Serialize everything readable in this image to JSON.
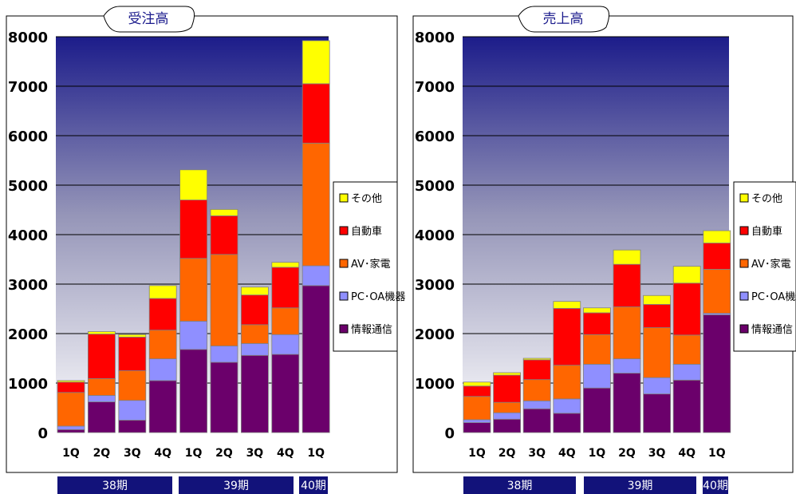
{
  "chart_data": [
    {
      "type": "bar",
      "stacked": true,
      "title": "受注高",
      "categories": [
        "1Q",
        "2Q",
        "3Q",
        "4Q",
        "1Q",
        "2Q",
        "3Q",
        "4Q",
        "1Q"
      ],
      "period_groups": [
        {
          "label": "38期",
          "span": 4
        },
        {
          "label": "39期",
          "span": 4
        },
        {
          "label": "40期",
          "span": 1
        }
      ],
      "ylim": [
        0,
        8000
      ],
      "yticks": [
        "0",
        "1000",
        "2000",
        "3000",
        "4000",
        "5000",
        "6000",
        "7000",
        "8000"
      ],
      "grid": true,
      "legend_position": "right",
      "series": [
        {
          "name": "情報通信",
          "color": "#6b006b",
          "values": [
            60,
            620,
            250,
            1050,
            1680,
            1420,
            1560,
            1580,
            2970
          ]
        },
        {
          "name": "PC･OA機器",
          "color": "#8f8fff",
          "values": [
            70,
            130,
            400,
            440,
            570,
            330,
            240,
            400,
            400
          ]
        },
        {
          "name": "AV･家電",
          "color": "#ff6600",
          "values": [
            680,
            340,
            600,
            580,
            1270,
            1850,
            380,
            540,
            2480
          ]
        },
        {
          "name": "自動車",
          "color": "#ff0000",
          "values": [
            210,
            900,
            680,
            640,
            1180,
            780,
            600,
            820,
            1200
          ]
        },
        {
          "name": "その他",
          "color": "#ffff00",
          "values": [
            30,
            50,
            50,
            260,
            610,
            130,
            160,
            100,
            870
          ]
        }
      ]
    },
    {
      "type": "bar",
      "stacked": true,
      "title": "売上高",
      "categories": [
        "1Q",
        "2Q",
        "3Q",
        "4Q",
        "1Q",
        "2Q",
        "3Q",
        "4Q",
        "1Q"
      ],
      "period_groups": [
        {
          "label": "38期",
          "span": 4
        },
        {
          "label": "39期",
          "span": 4
        },
        {
          "label": "40期",
          "span": 1
        }
      ],
      "ylim": [
        0,
        8000
      ],
      "yticks": [
        "0",
        "1000",
        "2000",
        "3000",
        "4000",
        "5000",
        "6000",
        "7000",
        "8000"
      ],
      "grid": true,
      "legend_position": "right",
      "series": [
        {
          "name": "情報通信",
          "color": "#6b006b",
          "values": [
            200,
            270,
            480,
            390,
            900,
            1200,
            780,
            1060,
            2380
          ]
        },
        {
          "name": "PC･OA機器",
          "color": "#8f8fff",
          "values": [
            60,
            130,
            160,
            290,
            480,
            290,
            330,
            320,
            30
          ]
        },
        {
          "name": "AV･家電",
          "color": "#ff6600",
          "values": [
            470,
            210,
            430,
            680,
            600,
            1050,
            1010,
            590,
            890
          ]
        },
        {
          "name": "自動車",
          "color": "#ff0000",
          "values": [
            210,
            550,
            400,
            1150,
            440,
            860,
            470,
            1050,
            530
          ]
        },
        {
          "name": "その他",
          "color": "#ffff00",
          "values": [
            80,
            50,
            30,
            140,
            100,
            290,
            180,
            340,
            250
          ]
        }
      ]
    }
  ]
}
